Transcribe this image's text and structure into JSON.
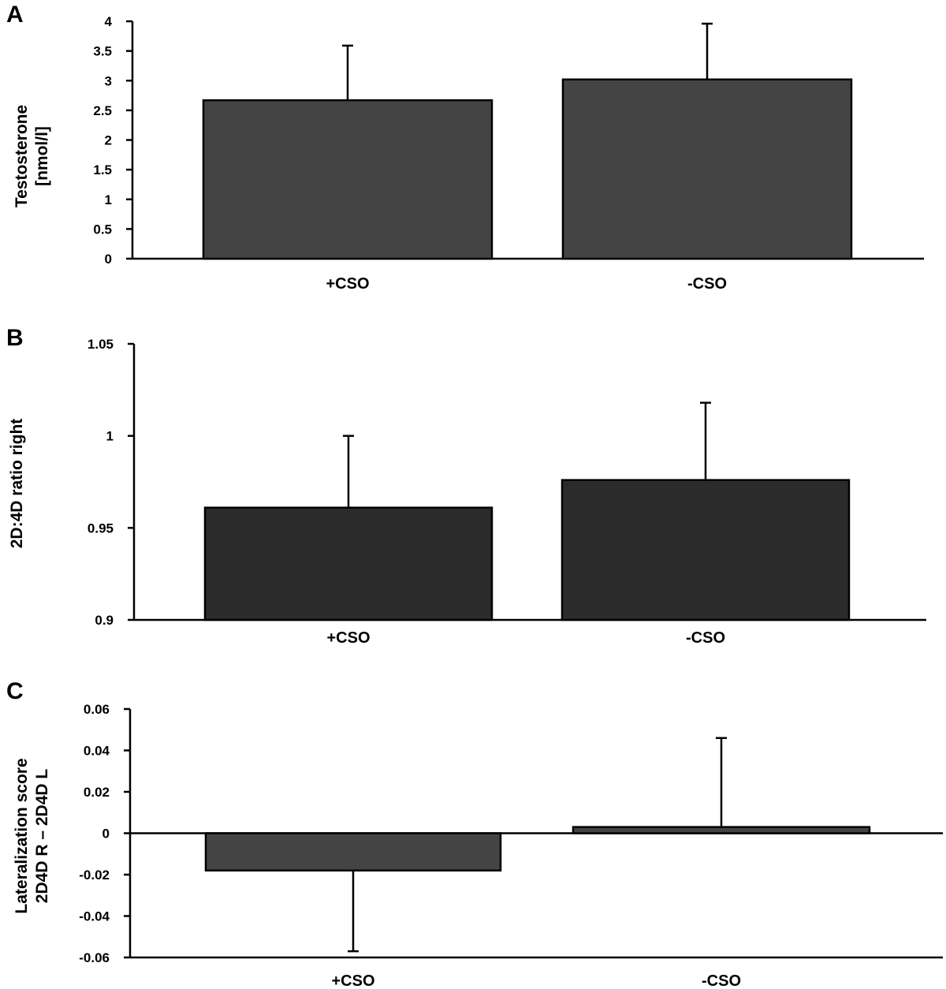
{
  "chart_data": [
    {
      "panel": "A",
      "type": "bar",
      "categories": [
        "+CSO",
        "-CSO"
      ],
      "values": [
        2.67,
        3.02
      ],
      "errors": [
        0.92,
        0.94
      ],
      "ylabel_lines": [
        "Testosterone",
        "[nmol/l]"
      ],
      "ylim": [
        0,
        4
      ],
      "yticks": [
        "0",
        "0.5",
        "1",
        "1.5",
        "2",
        "2.5",
        "3",
        "3.5",
        "4"
      ],
      "color": "#444444"
    },
    {
      "panel": "B",
      "type": "bar",
      "categories": [
        "+CSO",
        "-CSO"
      ],
      "values": [
        0.961,
        0.976
      ],
      "errors": [
        0.039,
        0.042
      ],
      "ylabel_lines": [
        "2D:4D ratio right"
      ],
      "ylim": [
        0.9,
        1.05
      ],
      "yticks": [
        "0.9",
        "0.95",
        "1",
        "1.05"
      ],
      "color": "#2b2b2b"
    },
    {
      "panel": "C",
      "type": "bar",
      "categories": [
        "+CSO",
        "-CSO"
      ],
      "values": [
        -0.018,
        0.003
      ],
      "errors": [
        0.039,
        0.043
      ],
      "ylabel_lines": [
        "Lateralization score",
        "2D4D R – 2D4D L"
      ],
      "ylim": [
        -0.06,
        0.06
      ],
      "yticks": [
        "-0.06",
        "-0.04",
        "-0.02",
        "0",
        "0.02",
        "0.04",
        "0.06"
      ],
      "color": "#444444"
    }
  ]
}
